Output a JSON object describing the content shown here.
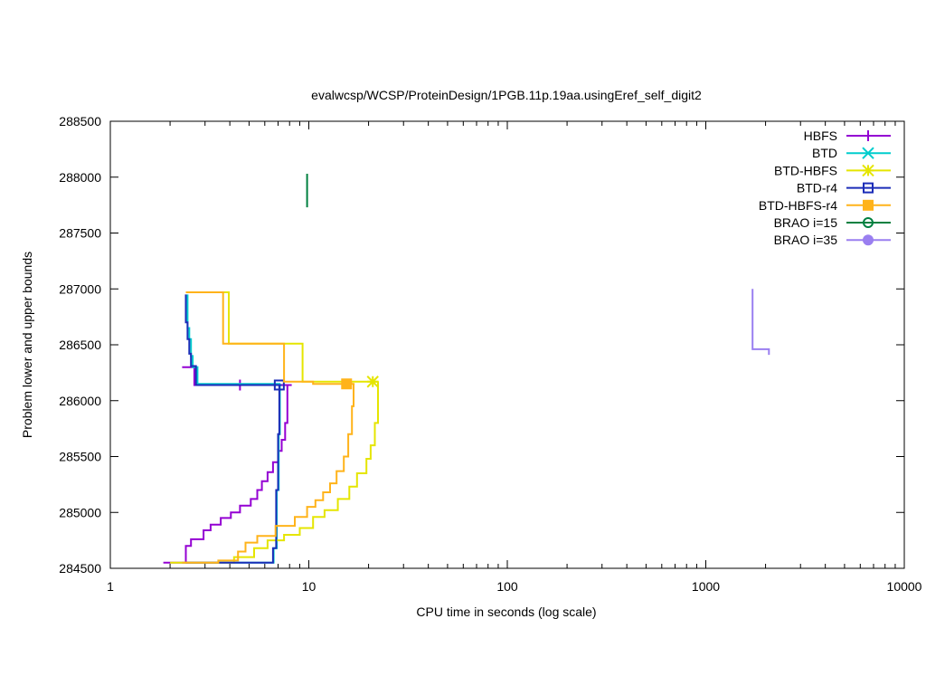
{
  "chart_data": {
    "type": "line",
    "title": "evalwcsp/WCSP/ProteinDesign/1PGB.11p.19aa.usingEref_self_digit2",
    "xlabel": "CPU time in seconds (log scale)",
    "ylabel": "Problem lower and upper bounds",
    "xscale": "log",
    "xlim": [
      1,
      10000
    ],
    "ylim": [
      284500,
      288500
    ],
    "x_ticks": [
      "1",
      "10",
      "100",
      "1000",
      "10000"
    ],
    "y_ticks": [
      "284500",
      "285000",
      "285500",
      "286000",
      "286500",
      "287000",
      "287500",
      "288000",
      "288500"
    ],
    "grid": false,
    "legend_position": "top-right",
    "series": [
      {
        "name": "HBFS",
        "color": "#9400d3",
        "marker": "plus",
        "marker_x": 4.5,
        "upper": [
          [
            2.3,
            286300
          ],
          [
            2.65,
            286300
          ],
          [
            2.65,
            286140
          ],
          [
            8.2,
            286140
          ]
        ],
        "lower": [
          [
            1.85,
            284550
          ],
          [
            2.4,
            284550
          ],
          [
            2.4,
            284700
          ],
          [
            2.55,
            284700
          ],
          [
            2.55,
            284760
          ],
          [
            2.95,
            284760
          ],
          [
            2.95,
            284840
          ],
          [
            3.2,
            284840
          ],
          [
            3.2,
            284890
          ],
          [
            3.6,
            284890
          ],
          [
            3.6,
            284950
          ],
          [
            4.05,
            284950
          ],
          [
            4.05,
            285000
          ],
          [
            4.5,
            285000
          ],
          [
            4.5,
            285060
          ],
          [
            5.1,
            285060
          ],
          [
            5.1,
            285120
          ],
          [
            5.5,
            285120
          ],
          [
            5.5,
            285200
          ],
          [
            5.8,
            285200
          ],
          [
            5.8,
            285280
          ],
          [
            6.2,
            285280
          ],
          [
            6.2,
            285360
          ],
          [
            6.6,
            285360
          ],
          [
            6.6,
            285450
          ],
          [
            7.0,
            285450
          ],
          [
            7.0,
            285550
          ],
          [
            7.3,
            285550
          ],
          [
            7.3,
            285650
          ],
          [
            7.6,
            285650
          ],
          [
            7.6,
            285800
          ],
          [
            7.8,
            285800
          ],
          [
            7.8,
            286000
          ],
          [
            7.8,
            286140
          ]
        ]
      },
      {
        "name": "BTD",
        "color": "#00cdcd",
        "marker": "cross",
        "upper": [
          [
            2.45,
            286950
          ],
          [
            2.45,
            286650
          ],
          [
            2.5,
            286650
          ],
          [
            2.5,
            286550
          ],
          [
            2.55,
            286550
          ],
          [
            2.55,
            286400
          ],
          [
            2.6,
            286400
          ],
          [
            2.6,
            286300
          ],
          [
            2.75,
            286300
          ],
          [
            2.75,
            286150
          ],
          [
            7.2,
            286150
          ]
        ],
        "lower": [
          [
            2.3,
            284550
          ],
          [
            6.65,
            284550
          ],
          [
            6.65,
            284680
          ],
          [
            6.9,
            284680
          ],
          [
            6.9,
            285200
          ],
          [
            7.05,
            285200
          ],
          [
            7.05,
            285700
          ],
          [
            7.15,
            285700
          ],
          [
            7.15,
            286150
          ]
        ]
      },
      {
        "name": "BTD-HBFS",
        "color": "#e5e500",
        "marker": "star",
        "marker_x": 21,
        "upper": [
          [
            2.45,
            286970
          ],
          [
            3.95,
            286970
          ],
          [
            3.95,
            286510
          ],
          [
            9.3,
            286510
          ],
          [
            9.3,
            286170
          ],
          [
            22.5,
            286170
          ]
        ],
        "lower": [
          [
            2.0,
            284550
          ],
          [
            4.2,
            284550
          ],
          [
            4.2,
            284600
          ],
          [
            5.3,
            284600
          ],
          [
            5.3,
            284680
          ],
          [
            6.2,
            284680
          ],
          [
            6.2,
            284750
          ],
          [
            7.5,
            284750
          ],
          [
            7.5,
            284800
          ],
          [
            9.0,
            284800
          ],
          [
            9.0,
            284860
          ],
          [
            10.5,
            284860
          ],
          [
            10.5,
            284960
          ],
          [
            12.0,
            284960
          ],
          [
            12.0,
            285020
          ],
          [
            14.0,
            285020
          ],
          [
            14.0,
            285120
          ],
          [
            16.0,
            285120
          ],
          [
            16.0,
            285230
          ],
          [
            17.5,
            285230
          ],
          [
            17.5,
            285350
          ],
          [
            19.5,
            285350
          ],
          [
            19.5,
            285480
          ],
          [
            20.5,
            285480
          ],
          [
            20.5,
            285600
          ],
          [
            21.5,
            285600
          ],
          [
            21.5,
            285800
          ],
          [
            22.3,
            285800
          ],
          [
            22.3,
            286170
          ]
        ]
      },
      {
        "name": "BTD-r4",
        "color": "#1c2db8",
        "marker": "square-open",
        "marker_x": 7.1,
        "upper": [
          [
            2.4,
            286950
          ],
          [
            2.4,
            286700
          ],
          [
            2.45,
            286700
          ],
          [
            2.45,
            286550
          ],
          [
            2.5,
            286550
          ],
          [
            2.5,
            286420
          ],
          [
            2.55,
            286420
          ],
          [
            2.55,
            286310
          ],
          [
            2.7,
            286310
          ],
          [
            2.7,
            286140
          ],
          [
            7.3,
            286140
          ]
        ],
        "lower": [
          [
            2.4,
            284550
          ],
          [
            6.6,
            284550
          ],
          [
            6.6,
            284680
          ],
          [
            6.85,
            284680
          ],
          [
            6.85,
            285200
          ],
          [
            7.0,
            285200
          ],
          [
            7.0,
            285700
          ],
          [
            7.1,
            285700
          ],
          [
            7.1,
            286140
          ]
        ]
      },
      {
        "name": "BTD-HBFS-r4",
        "color": "#ffb31a",
        "marker": "square-filled",
        "marker_x": 15.5,
        "upper": [
          [
            2.4,
            286970
          ],
          [
            3.7,
            286970
          ],
          [
            3.7,
            286510
          ],
          [
            7.5,
            286510
          ],
          [
            7.5,
            286170
          ],
          [
            10.5,
            286170
          ],
          [
            10.5,
            286150
          ],
          [
            17.0,
            286150
          ]
        ],
        "lower": [
          [
            2.3,
            284550
          ],
          [
            3.5,
            284550
          ],
          [
            3.5,
            284570
          ],
          [
            4.4,
            284570
          ],
          [
            4.4,
            284650
          ],
          [
            4.8,
            284650
          ],
          [
            4.8,
            284730
          ],
          [
            5.5,
            284730
          ],
          [
            5.5,
            284790
          ],
          [
            6.8,
            284790
          ],
          [
            6.8,
            284880
          ],
          [
            8.5,
            284880
          ],
          [
            8.5,
            284960
          ],
          [
            9.8,
            284960
          ],
          [
            9.8,
            285050
          ],
          [
            10.8,
            285050
          ],
          [
            10.8,
            285110
          ],
          [
            11.8,
            285110
          ],
          [
            11.8,
            285180
          ],
          [
            12.8,
            285180
          ],
          [
            12.8,
            285260
          ],
          [
            13.8,
            285260
          ],
          [
            13.8,
            285370
          ],
          [
            15.0,
            285370
          ],
          [
            15.0,
            285500
          ],
          [
            15.8,
            285500
          ],
          [
            15.8,
            285700
          ],
          [
            16.5,
            285700
          ],
          [
            16.5,
            285950
          ],
          [
            16.8,
            285950
          ],
          [
            16.8,
            286150
          ]
        ]
      },
      {
        "name": "BRAO i=15",
        "color": "#008040",
        "marker": "circle-open",
        "upper": [
          [
            9.8,
            288030
          ],
          [
            9.8,
            287730
          ]
        ],
        "lower": []
      },
      {
        "name": "BRAO i=35",
        "color": "#9a7ff0",
        "marker": "circle-filled",
        "upper": [
          [
            1720,
            287000
          ],
          [
            1720,
            286460
          ],
          [
            2080,
            286460
          ],
          [
            2080,
            286410
          ]
        ],
        "lower": []
      }
    ]
  }
}
